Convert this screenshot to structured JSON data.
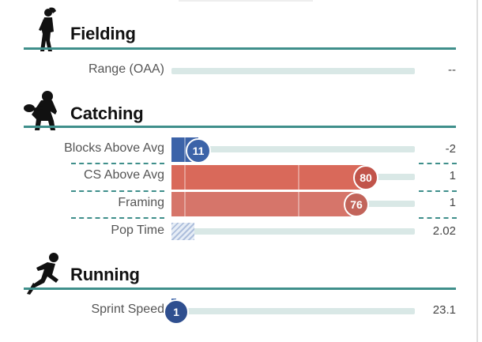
{
  "colors": {
    "rule": "#3f8f8b",
    "track": "#d9e8e6",
    "low_blue": "#3c63a8",
    "high_red": "#d9695a",
    "framing_red": "#d6756a"
  },
  "fielding": {
    "title": "Fielding",
    "icon": "fielder-silhouette-icon",
    "metrics": [
      {
        "label": "Range (OAA)",
        "value": "--"
      }
    ]
  },
  "catching": {
    "title": "Catching",
    "icon": "catcher-silhouette-icon",
    "metrics": [
      {
        "label": "Blocks Above Avg",
        "percentile": 11,
        "value": "-2"
      },
      {
        "label": "CS Above Avg",
        "percentile": 80,
        "value": "1"
      },
      {
        "label": "Framing",
        "percentile": 76,
        "value": "1"
      },
      {
        "label": "Pop Time",
        "value": "2.02"
      }
    ]
  },
  "running": {
    "title": "Running",
    "icon": "runner-silhouette-icon",
    "metrics": [
      {
        "label": "Sprint Speed",
        "percentile": 1,
        "value": "23.1"
      }
    ]
  }
}
